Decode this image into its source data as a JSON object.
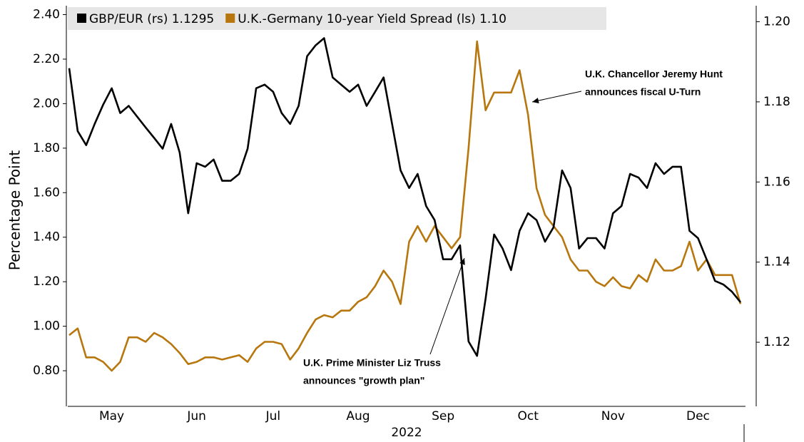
{
  "chart_data": {
    "type": "line",
    "y_label": "Percentage Point",
    "x_label": "2022",
    "categories": [
      null,
      null,
      null,
      null,
      null,
      "May",
      null,
      null,
      null,
      null,
      null,
      null,
      null,
      null,
      null,
      "Jun",
      null,
      null,
      null,
      null,
      null,
      null,
      null,
      null,
      "Jul",
      null,
      null,
      null,
      null,
      null,
      null,
      null,
      null,
      null,
      "Aug",
      null,
      null,
      null,
      null,
      null,
      null,
      null,
      null,
      null,
      "Sep",
      null,
      null,
      null,
      null,
      null,
      null,
      null,
      null,
      null,
      "Oct",
      null,
      null,
      null,
      null,
      null,
      null,
      null,
      null,
      null,
      "Nov",
      null,
      null,
      null,
      null,
      null,
      null,
      null,
      null,
      null,
      "Dec",
      null,
      null,
      null,
      null,
      null
    ],
    "series": [
      {
        "name": "GBP/EUR (rs) 1.1295",
        "color": "#000000",
        "axis": "y2",
        "values": [
          1.1884,
          1.1727,
          1.1692,
          1.1745,
          1.1793,
          1.1834,
          1.1772,
          1.179,
          1.1763,
          1.1736,
          1.171,
          1.1683,
          1.1745,
          1.1674,
          1.1522,
          1.1647,
          1.1638,
          1.1656,
          1.1603,
          1.1603,
          1.162,
          1.1683,
          1.1834,
          1.1843,
          1.1825,
          1.1772,
          1.1745,
          1.179,
          1.1914,
          1.1941,
          1.1959,
          1.1861,
          1.1843,
          1.1825,
          1.1843,
          1.179,
          1.1825,
          1.1861,
          1.1745,
          1.1629,
          1.1585,
          1.162,
          1.154,
          1.1505,
          1.1407,
          1.1407,
          1.1442,
          1.1202,
          1.1166,
          1.1309,
          1.1469,
          1.1434,
          1.138,
          1.1478,
          1.1522,
          1.1505,
          1.1451,
          1.1487,
          1.1629,
          1.1585,
          1.1434,
          1.146,
          1.146,
          1.1434,
          1.1522,
          1.154,
          1.162,
          1.1611,
          1.1585,
          1.1647,
          1.162,
          1.1638,
          1.1638,
          1.1478,
          1.146,
          1.1407,
          1.1353,
          1.1344,
          1.1326,
          1.13
        ]
      },
      {
        "name": "U.K.-Germany 10-year Yield Spread (ls) 1.10",
        "color": "#b8770e",
        "values": [
          0.96,
          0.99,
          0.86,
          0.86,
          0.84,
          0.8,
          0.84,
          0.95,
          0.95,
          0.93,
          0.97,
          0.95,
          0.92,
          0.88,
          0.83,
          0.84,
          0.86,
          0.86,
          0.85,
          0.86,
          0.87,
          0.84,
          0.9,
          0.93,
          0.93,
          0.92,
          0.85,
          0.9,
          0.97,
          1.03,
          1.05,
          1.04,
          1.07,
          1.07,
          1.11,
          1.13,
          1.18,
          1.25,
          1.2,
          1.1,
          1.38,
          1.45,
          1.38,
          1.45,
          1.4,
          1.35,
          1.4,
          1.8,
          2.28,
          1.97,
          2.05,
          2.05,
          2.05,
          2.15,
          1.95,
          1.62,
          1.5,
          1.45,
          1.4,
          1.3,
          1.25,
          1.25,
          1.2,
          1.18,
          1.22,
          1.18,
          1.17,
          1.23,
          1.2,
          1.3,
          1.25,
          1.25,
          1.27,
          1.38,
          1.25,
          1.3,
          1.23,
          1.23,
          1.23,
          1.1
        ]
      }
    ],
    "ylim": [
      0.64,
      2.44
    ],
    "yticks": [
      {
        "value": 0.8,
        "label": "0.80"
      },
      {
        "value": 1.0,
        "label": "1.00"
      },
      {
        "value": 1.2,
        "label": "1.20"
      },
      {
        "value": 1.4,
        "label": "1.40"
      },
      {
        "value": 1.6,
        "label": "1.60"
      },
      {
        "value": 1.8,
        "label": "1.80"
      },
      {
        "value": 2.0,
        "label": "2.00"
      },
      {
        "value": 2.2,
        "label": "2.20"
      },
      {
        "value": 2.4,
        "label": "2.40"
      }
    ],
    "y2lim": [
      1.104,
      1.204
    ],
    "y2ticks": [
      1.12,
      1.14,
      1.16,
      1.18,
      {
        "value": 1.2,
        "label": "1.20"
      }
    ],
    "grid": false,
    "legend": "top-left",
    "annotations": [
      {
        "lines": [
          "U.K. Chancellor Jeremy Hunt",
          "announces fiscal U-Turn"
        ]
      },
      {
        "lines": [
          "U.K. Prime Minister Liz Truss",
          "announces \"growth plan\""
        ]
      }
    ]
  }
}
